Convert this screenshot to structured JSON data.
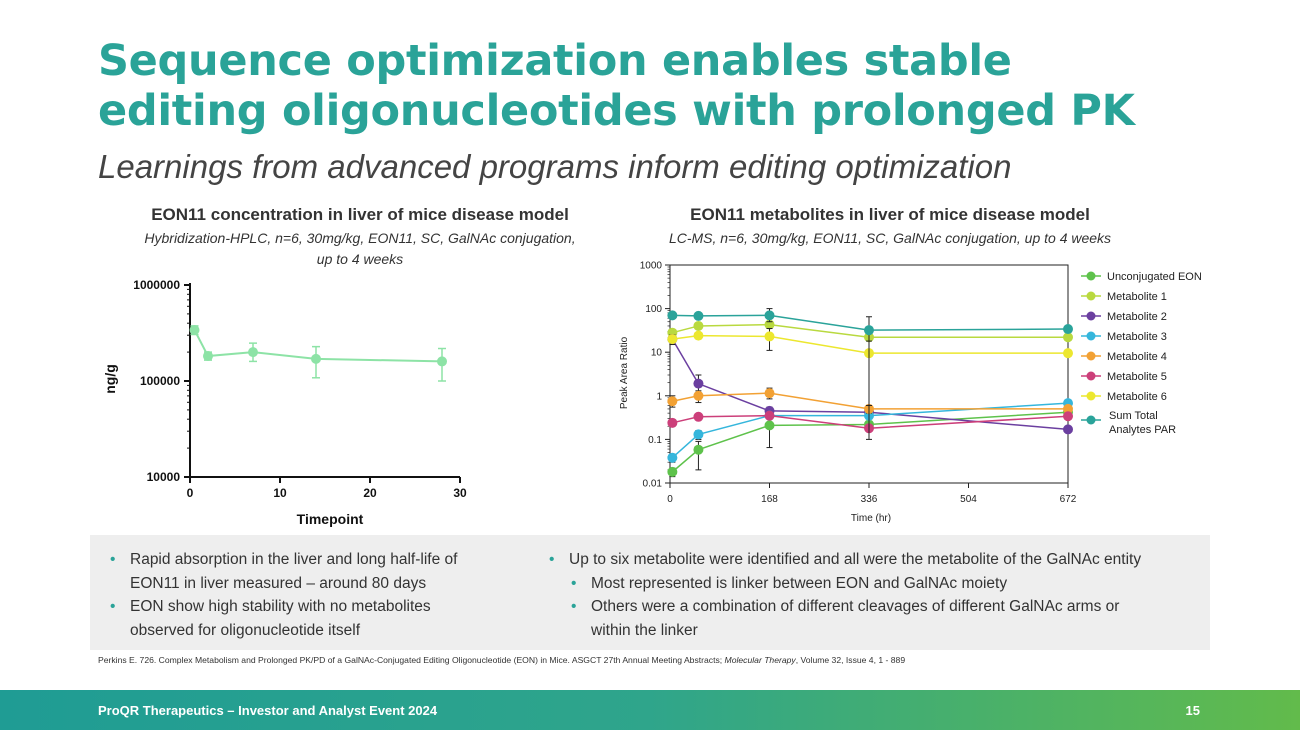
{
  "slide": {
    "title_line1": "Sequence optimization enables stable",
    "title_line2": "editing oligonucleotides with prolonged PK",
    "subtitle": "Learnings from advanced programs inform editing optimization"
  },
  "left_chart_header": {
    "title": "EON11 concentration in liver of mice disease model",
    "subtitle_line1": "Hybridization-HPLC, n=6, 30mg/kg, EON11, SC, GalNAc conjugation,",
    "subtitle_line2": "up to 4 weeks"
  },
  "right_chart_header": {
    "title": "EON11 metabolites in liver of mice disease model",
    "subtitle": "LC-MS, n=6, 30mg/kg, EON11, SC, GalNAc conjugation, up to 4 weeks"
  },
  "chart_data": [
    {
      "type": "line",
      "title": "EON11 concentration in liver of mice disease model",
      "xlabel": "Timepoint",
      "ylabel": "ng/g",
      "yscale": "log",
      "xlim": [
        0,
        30
      ],
      "ylim": [
        10000,
        1000000
      ],
      "xticks": [
        "0",
        "10",
        "20",
        "30"
      ],
      "yticks": [
        "10000",
        "100000",
        "1000000"
      ],
      "color": "#8de3a6",
      "series": [
        {
          "name": "EON11",
          "x": [
            0.5,
            2,
            7,
            14,
            28
          ],
          "y": [
            340000,
            182000,
            200000,
            170000,
            160000
          ],
          "err_low": [
            305000,
            165000,
            160000,
            108000,
            100000
          ],
          "err_high": [
            375000,
            200000,
            248000,
            228000,
            218000
          ]
        }
      ]
    },
    {
      "type": "line",
      "title": "EON11 metabolites in liver of mice disease model",
      "xlabel": "Time (hr)",
      "ylabel": "Peak Area Ratio",
      "yscale": "log",
      "xlim": [
        0,
        672
      ],
      "ylim": [
        0.01,
        1000
      ],
      "xticks": [
        "0",
        "168",
        "336",
        "504",
        "672"
      ],
      "yticks": [
        "0.01",
        "0.1",
        "1",
        "10",
        "100",
        "1000"
      ],
      "x": [
        4,
        48,
        168,
        336,
        672
      ],
      "series": [
        {
          "name": "Unconjugated EON",
          "color": "#5ec24b",
          "values": [
            0.018,
            0.058,
            0.21,
            0.22,
            0.42
          ],
          "err_low": [
            0.014,
            0.02,
            0.065,
            0.2,
            0.38
          ],
          "err_high": [
            0.022,
            0.09,
            0.35,
            0.24,
            0.46
          ]
        },
        {
          "name": "Metabolite  1",
          "color": "#b9d93f",
          "values": [
            28,
            40,
            43,
            22,
            22
          ],
          "err_low": [
            24,
            35,
            38,
            20,
            20
          ],
          "err_high": [
            32,
            45,
            48,
            24,
            24
          ]
        },
        {
          "name": "Metabolite  2",
          "color": "#6b3fa0",
          "values": [
            20,
            1.9,
            0.45,
            0.42,
            0.17
          ],
          "err_low": [
            15,
            1.1,
            0.35,
            0.35,
            0.14
          ],
          "err_high": [
            25,
            3.0,
            0.55,
            0.5,
            0.2
          ]
        },
        {
          "name": "Metabolite 3",
          "color": "#35b6dc",
          "values": [
            0.038,
            0.13,
            0.35,
            0.35,
            0.68
          ],
          "err_low": [
            0.03,
            0.1,
            0.3,
            0.3,
            0.6
          ],
          "err_high": [
            0.046,
            0.16,
            0.4,
            0.4,
            0.76
          ]
        },
        {
          "name": "Metabolite 4",
          "color": "#f2a134",
          "values": [
            0.75,
            1.0,
            1.15,
            0.5,
            0.5
          ],
          "err_low": [
            0.55,
            0.7,
            0.85,
            0.4,
            0.42
          ],
          "err_high": [
            1.0,
            1.3,
            1.5,
            0.6,
            0.58
          ]
        },
        {
          "name": "Metabolite 5",
          "color": "#cc3f7a",
          "values": [
            0.24,
            0.33,
            0.35,
            0.18,
            0.34
          ],
          "err_low": [
            0.2,
            0.28,
            0.3,
            0.15,
            0.3
          ],
          "err_high": [
            0.28,
            0.38,
            0.4,
            0.21,
            0.38
          ]
        },
        {
          "name": "Metabolite 6",
          "color": "#ece72f",
          "values": [
            20,
            24,
            23,
            9.5,
            9.5
          ],
          "err_low": [
            17,
            21,
            11,
            0.6,
            8.5
          ],
          "err_high": [
            23,
            27,
            35,
            18,
            10.5
          ]
        },
        {
          "name": "Sum Total Analytes PAR",
          "color": "#2aa39a",
          "values": [
            70,
            68,
            70,
            32,
            34
          ],
          "err_low": [
            60,
            60,
            50,
            0.1,
            30
          ],
          "err_high": [
            80,
            76,
            100,
            65,
            38
          ]
        }
      ]
    }
  ],
  "legend_labels": {
    "s0": "Unconjugated EON",
    "s1": "Metabolite  1",
    "s2": "Metabolite  2",
    "s3": "Metabolite 3",
    "s4": "Metabolite 4",
    "s5": "Metabolite 5",
    "s6": "Metabolite 6",
    "s7_line1": "Sum Total",
    "s7_line2": "Analytes PAR"
  },
  "bullets": {
    "left": [
      {
        "line1": "Rapid absorption in the liver and long half-life of",
        "line2": "EON11 in liver measured – around 80 days"
      },
      {
        "line1": "EON show high stability with no metabolites",
        "line2": "observed for oligonucleotide itself"
      }
    ],
    "right": {
      "main": "Up to six metabolite were identified and all were the metabolite of the GalNAc entity",
      "sub1": "Most represented is linker between EON and GalNAc moiety",
      "sub2_line1": "Others were a combination of different cleavages of different GalNAc arms or",
      "sub2_line2": "within the linker"
    }
  },
  "reference": {
    "text": "Perkins E. 726. Complex Metabolism and Prolonged PK/PD of a GalNAc-Conjugated Editing Oligonucleotide (EON) in Mice. ASGCT 27th Annual Meeting Abstracts; ",
    "journal": "Molecular Therapy",
    "tail": ", Volume 32, Issue 4, 1 - 889"
  },
  "footer": {
    "left": "ProQR Therapeutics – Investor and Analyst Event 2024",
    "page": "15"
  },
  "colors": {
    "accent": "#2aa398"
  }
}
